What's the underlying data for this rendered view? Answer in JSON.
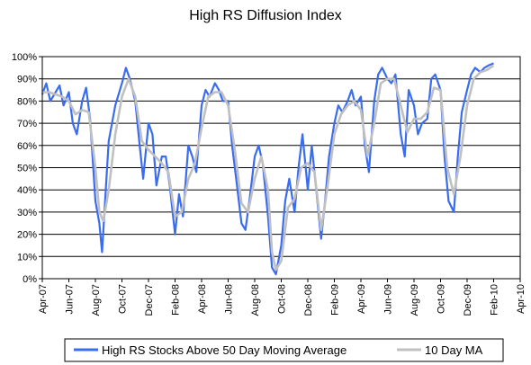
{
  "chart_data": {
    "type": "line",
    "title": "High RS Diffusion Index",
    "xlabel": "",
    "ylabel": "",
    "ylim": [
      0,
      1
    ],
    "y_ticks": [
      "0%",
      "10%",
      "20%",
      "30%",
      "40%",
      "50%",
      "60%",
      "70%",
      "80%",
      "90%",
      "100%"
    ],
    "x_ticks": [
      "Apr-07",
      "Jun-07",
      "Aug-07",
      "Oct-07",
      "Dec-07",
      "Feb-08",
      "Apr-08",
      "Jun-08",
      "Aug-08",
      "Oct-08",
      "Dec-08",
      "Feb-09",
      "Apr-09",
      "Jun-09",
      "Aug-09",
      "Oct-09",
      "Dec-09",
      "Feb-10",
      "Apr-10"
    ],
    "grid": true,
    "legend_position": "bottom",
    "x_unit": "month index (0 = Apr-07, 36 = Apr-10)",
    "colors": {
      "series1": "#3a6cf0",
      "series2": "#c0c0c0",
      "grid": "#000000"
    },
    "series": [
      {
        "name": "High RS Stocks Above 50 Day Moving Average",
        "points": [
          [
            0,
            0.83
          ],
          [
            0.3,
            0.88
          ],
          [
            0.6,
            0.8
          ],
          [
            1.0,
            0.84
          ],
          [
            1.3,
            0.87
          ],
          [
            1.6,
            0.78
          ],
          [
            2.0,
            0.84
          ],
          [
            2.3,
            0.7
          ],
          [
            2.6,
            0.65
          ],
          [
            3.0,
            0.8
          ],
          [
            3.3,
            0.86
          ],
          [
            3.6,
            0.72
          ],
          [
            4.0,
            0.35
          ],
          [
            4.3,
            0.25
          ],
          [
            4.5,
            0.12
          ],
          [
            4.8,
            0.42
          ],
          [
            5.0,
            0.62
          ],
          [
            5.5,
            0.78
          ],
          [
            6.0,
            0.88
          ],
          [
            6.3,
            0.95
          ],
          [
            6.6,
            0.9
          ],
          [
            7.0,
            0.8
          ],
          [
            7.3,
            0.62
          ],
          [
            7.6,
            0.45
          ],
          [
            8.0,
            0.7
          ],
          [
            8.3,
            0.65
          ],
          [
            8.6,
            0.42
          ],
          [
            9.0,
            0.55
          ],
          [
            9.3,
            0.55
          ],
          [
            9.6,
            0.42
          ],
          [
            10.0,
            0.2
          ],
          [
            10.3,
            0.38
          ],
          [
            10.6,
            0.28
          ],
          [
            11.0,
            0.6
          ],
          [
            11.3,
            0.55
          ],
          [
            11.6,
            0.48
          ],
          [
            12.0,
            0.78
          ],
          [
            12.3,
            0.85
          ],
          [
            12.6,
            0.82
          ],
          [
            13.0,
            0.88
          ],
          [
            13.3,
            0.85
          ],
          [
            13.6,
            0.8
          ],
          [
            14.0,
            0.8
          ],
          [
            14.3,
            0.6
          ],
          [
            14.6,
            0.45
          ],
          [
            15.0,
            0.25
          ],
          [
            15.3,
            0.22
          ],
          [
            15.6,
            0.35
          ],
          [
            16.0,
            0.55
          ],
          [
            16.3,
            0.6
          ],
          [
            16.6,
            0.52
          ],
          [
            17.0,
            0.28
          ],
          [
            17.3,
            0.05
          ],
          [
            17.6,
            0.02
          ],
          [
            18.0,
            0.15
          ],
          [
            18.3,
            0.35
          ],
          [
            18.6,
            0.45
          ],
          [
            19.0,
            0.3
          ],
          [
            19.3,
            0.5
          ],
          [
            19.6,
            0.65
          ],
          [
            20.0,
            0.4
          ],
          [
            20.3,
            0.6
          ],
          [
            20.6,
            0.42
          ],
          [
            21.0,
            0.18
          ],
          [
            21.3,
            0.35
          ],
          [
            21.6,
            0.55
          ],
          [
            22.0,
            0.7
          ],
          [
            22.3,
            0.78
          ],
          [
            22.6,
            0.75
          ],
          [
            23.0,
            0.8
          ],
          [
            23.3,
            0.85
          ],
          [
            23.6,
            0.78
          ],
          [
            24.0,
            0.82
          ],
          [
            24.3,
            0.6
          ],
          [
            24.6,
            0.48
          ],
          [
            25.0,
            0.8
          ],
          [
            25.3,
            0.92
          ],
          [
            25.6,
            0.95
          ],
          [
            26.0,
            0.9
          ],
          [
            26.3,
            0.88
          ],
          [
            26.6,
            0.92
          ],
          [
            27.0,
            0.65
          ],
          [
            27.3,
            0.55
          ],
          [
            27.6,
            0.85
          ],
          [
            28.0,
            0.78
          ],
          [
            28.3,
            0.65
          ],
          [
            28.6,
            0.7
          ],
          [
            29.0,
            0.72
          ],
          [
            29.3,
            0.9
          ],
          [
            29.6,
            0.92
          ],
          [
            30.0,
            0.85
          ],
          [
            30.3,
            0.55
          ],
          [
            30.6,
            0.35
          ],
          [
            31.0,
            0.3
          ],
          [
            31.3,
            0.55
          ],
          [
            31.6,
            0.75
          ],
          [
            32.0,
            0.85
          ],
          [
            32.3,
            0.92
          ],
          [
            32.6,
            0.95
          ],
          [
            33.0,
            0.93
          ],
          [
            33.3,
            0.95
          ],
          [
            33.6,
            0.96
          ],
          [
            34.0,
            0.97
          ]
        ]
      },
      {
        "name": "10 Day MA",
        "points": [
          [
            0,
            0.84
          ],
          [
            0.5,
            0.84
          ],
          [
            1.0,
            0.83
          ],
          [
            1.5,
            0.82
          ],
          [
            2.0,
            0.8
          ],
          [
            2.5,
            0.74
          ],
          [
            3.0,
            0.76
          ],
          [
            3.5,
            0.75
          ],
          [
            4.0,
            0.5
          ],
          [
            4.3,
            0.3
          ],
          [
            4.6,
            0.26
          ],
          [
            5.0,
            0.4
          ],
          [
            5.5,
            0.65
          ],
          [
            6.0,
            0.82
          ],
          [
            6.5,
            0.9
          ],
          [
            7.0,
            0.82
          ],
          [
            7.5,
            0.62
          ],
          [
            8.0,
            0.58
          ],
          [
            8.5,
            0.55
          ],
          [
            9.0,
            0.52
          ],
          [
            9.5,
            0.48
          ],
          [
            10.0,
            0.28
          ],
          [
            10.5,
            0.3
          ],
          [
            11.0,
            0.45
          ],
          [
            11.5,
            0.52
          ],
          [
            12.0,
            0.68
          ],
          [
            12.5,
            0.82
          ],
          [
            13.0,
            0.84
          ],
          [
            13.5,
            0.84
          ],
          [
            14.0,
            0.78
          ],
          [
            14.5,
            0.58
          ],
          [
            15.0,
            0.34
          ],
          [
            15.5,
            0.3
          ],
          [
            16.0,
            0.45
          ],
          [
            16.5,
            0.55
          ],
          [
            17.0,
            0.4
          ],
          [
            17.3,
            0.12
          ],
          [
            17.6,
            0.04
          ],
          [
            18.0,
            0.08
          ],
          [
            18.5,
            0.32
          ],
          [
            19.0,
            0.36
          ],
          [
            19.5,
            0.5
          ],
          [
            20.0,
            0.52
          ],
          [
            20.5,
            0.48
          ],
          [
            21.0,
            0.22
          ],
          [
            21.5,
            0.42
          ],
          [
            22.0,
            0.65
          ],
          [
            22.5,
            0.74
          ],
          [
            23.0,
            0.78
          ],
          [
            23.5,
            0.8
          ],
          [
            24.0,
            0.76
          ],
          [
            24.5,
            0.55
          ],
          [
            25.0,
            0.7
          ],
          [
            25.5,
            0.88
          ],
          [
            26.0,
            0.9
          ],
          [
            26.5,
            0.9
          ],
          [
            27.0,
            0.78
          ],
          [
            27.5,
            0.66
          ],
          [
            28.0,
            0.72
          ],
          [
            28.5,
            0.72
          ],
          [
            29.0,
            0.75
          ],
          [
            29.5,
            0.86
          ],
          [
            30.0,
            0.85
          ],
          [
            30.5,
            0.5
          ],
          [
            31.0,
            0.38
          ],
          [
            31.5,
            0.55
          ],
          [
            32.0,
            0.78
          ],
          [
            32.5,
            0.9
          ],
          [
            33.0,
            0.93
          ],
          [
            33.5,
            0.94
          ],
          [
            34.0,
            0.96
          ]
        ]
      }
    ]
  }
}
